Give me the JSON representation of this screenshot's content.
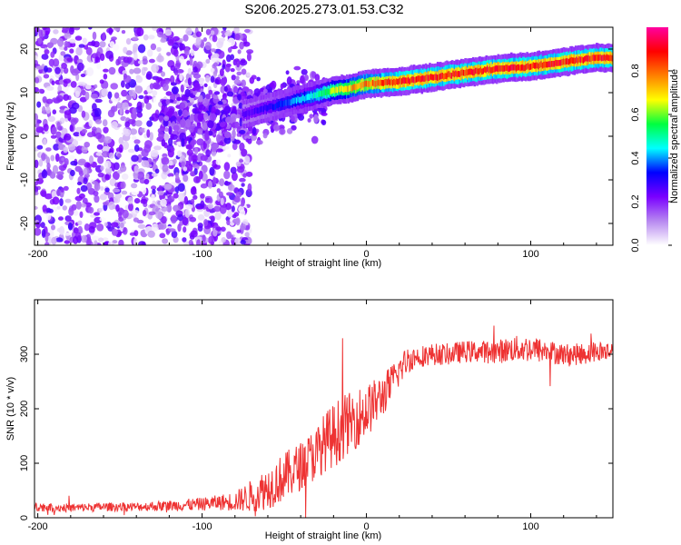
{
  "figure_title": "S206.2025.273.01.53.C32",
  "chart_data": [
    {
      "type": "heatmap",
      "title": "S206.2025.273.01.53.C32",
      "xlabel": "Height of straight line (km)",
      "ylabel": "Frequency (Hz)",
      "xlim": [
        -202,
        150
      ],
      "ylim": [
        -25,
        25
      ],
      "x_ticks": [
        -200,
        -100,
        0,
        100
      ],
      "y_ticks": [
        -20,
        -10,
        0,
        10,
        20
      ],
      "grid": false,
      "colorbar": {
        "label": "Normalized spectral amplitude",
        "range": [
          0,
          1
        ],
        "ticks": [
          "0.0",
          "0.2",
          "0.4",
          "0.6",
          "0.8"
        ],
        "tick_values": [
          0,
          0.2,
          0.4,
          0.6,
          0.8
        ],
        "colors": [
          "#ffffff",
          "#b788f0",
          "#7a00ff",
          "#0000ff",
          "#00ffff",
          "#00ff40",
          "#ffff00",
          "#ff8000",
          "#ff0000",
          "#ff00a0"
        ]
      },
      "ridge": {
        "x": [
          -75,
          -60,
          -45,
          -30,
          -20,
          -10,
          0,
          20,
          40,
          60,
          80,
          100,
          120,
          140,
          150
        ],
        "freq": [
          5.0,
          6.5,
          8.0,
          9.5,
          10.5,
          11.0,
          12.0,
          12.5,
          13.5,
          14.5,
          15.5,
          16.0,
          17.0,
          18.0,
          18.0
        ],
        "peak_amplitude": [
          0.25,
          0.3,
          0.4,
          0.5,
          0.65,
          0.75,
          0.8,
          0.9,
          0.9,
          0.9,
          0.9,
          0.9,
          0.9,
          0.9,
          0.9
        ]
      },
      "noise_region": {
        "x_range": [
          -202,
          -75
        ],
        "freq_range": [
          -25,
          25
        ],
        "typical_amplitude": 0.15
      }
    },
    {
      "type": "line",
      "xlabel": "Height of straight line (km)",
      "ylabel": "SNR (10 * v/v)",
      "xlim": [
        -202,
        150
      ],
      "ylim": [
        0,
        400
      ],
      "x_ticks": [
        -200,
        -100,
        0,
        100
      ],
      "y_ticks": [
        0,
        100,
        200,
        300
      ],
      "grid": false,
      "series": [
        {
          "name": "SNR",
          "color": "#ee3333",
          "x": [
            -202,
            -180,
            -160,
            -140,
            -120,
            -100,
            -90,
            -80,
            -70,
            -60,
            -50,
            -40,
            -30,
            -25,
            -20,
            -15,
            -10,
            -5,
            0,
            5,
            10,
            15,
            20,
            25,
            30,
            40,
            50,
            60,
            70,
            80,
            90,
            100,
            110,
            120,
            130,
            140,
            150
          ],
          "values": [
            20,
            18,
            20,
            20,
            22,
            25,
            28,
            30,
            40,
            55,
            75,
            95,
            120,
            140,
            150,
            165,
            175,
            185,
            195,
            210,
            225,
            245,
            270,
            290,
            295,
            300,
            300,
            305,
            305,
            305,
            310,
            310,
            305,
            300,
            300,
            305,
            305
          ],
          "noise_spread": [
            8,
            8,
            8,
            8,
            10,
            12,
            14,
            18,
            30,
            40,
            45,
            45,
            50,
            55,
            60,
            60,
            55,
            55,
            50,
            45,
            40,
            35,
            30,
            25,
            20,
            20,
            20,
            20,
            20,
            22,
            24,
            25,
            22,
            20,
            20,
            20,
            20
          ]
        }
      ]
    }
  ]
}
